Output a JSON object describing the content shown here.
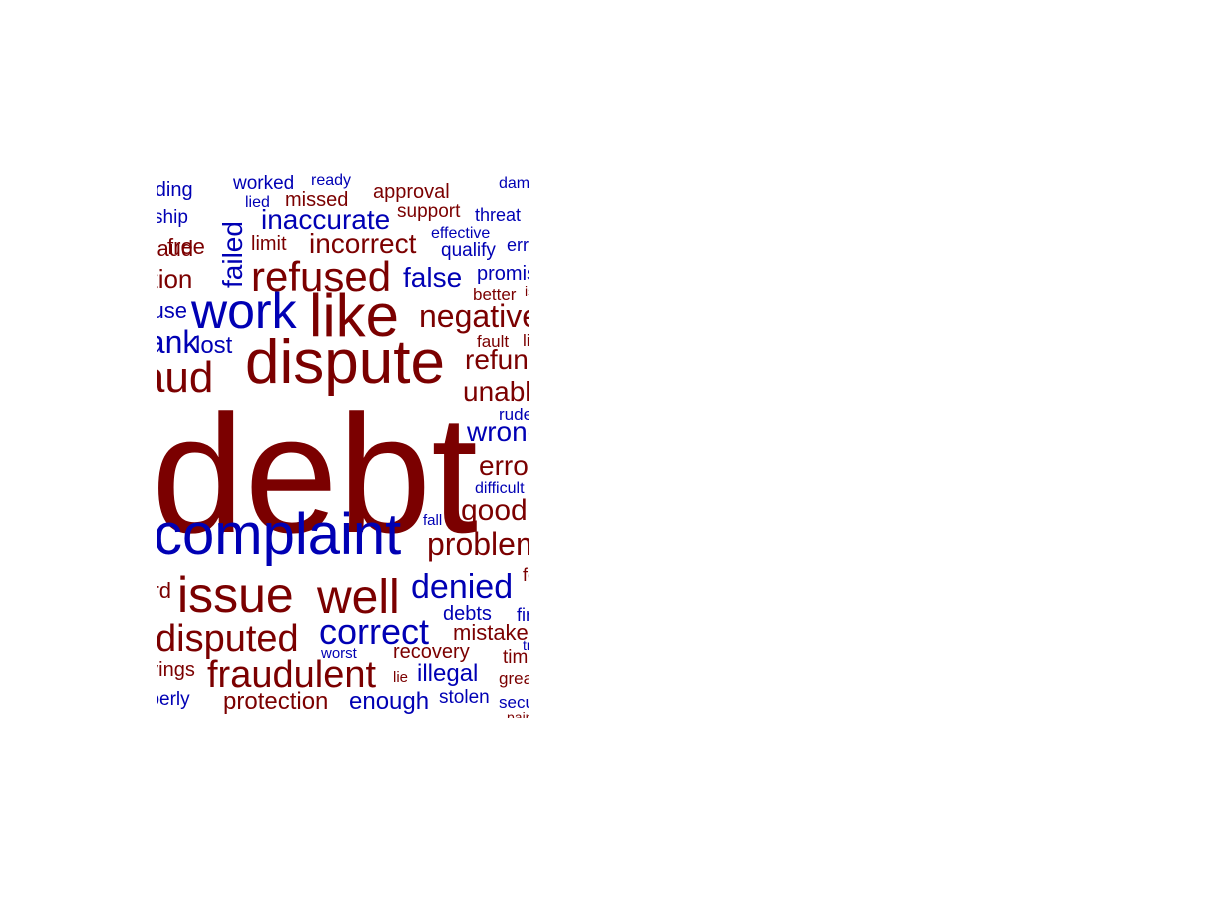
{
  "word_cloud": {
    "colors": {
      "negative": "#7b0000",
      "positive": "#0000b4"
    },
    "words": [
      {
        "text": "debt",
        "sentiment": "negative"
      },
      {
        "text": "complaint",
        "sentiment": "positive"
      },
      {
        "text": "dispute",
        "sentiment": "negative"
      },
      {
        "text": "like",
        "sentiment": "negative"
      },
      {
        "text": "work",
        "sentiment": "positive"
      },
      {
        "text": "refused",
        "sentiment": "negative"
      },
      {
        "text": "issue",
        "sentiment": "negative"
      },
      {
        "text": "well",
        "sentiment": "negative"
      },
      {
        "text": "fraudulent",
        "sentiment": "negative"
      },
      {
        "text": "disputed",
        "sentiment": "negative"
      },
      {
        "text": "correct",
        "sentiment": "positive"
      },
      {
        "text": "denied",
        "sentiment": "positive"
      },
      {
        "text": "problem",
        "sentiment": "negative"
      },
      {
        "text": "good",
        "sentiment": "negative"
      },
      {
        "text": "negative",
        "sentiment": "negative"
      },
      {
        "text": "fraud",
        "sentiment": "negative"
      },
      {
        "text": "incorrect",
        "sentiment": "negative"
      },
      {
        "text": "inaccurate",
        "sentiment": "positive"
      },
      {
        "text": "false",
        "sentiment": "positive"
      },
      {
        "text": "failed",
        "sentiment": "positive"
      },
      {
        "text": "refund",
        "sentiment": "negative"
      },
      {
        "text": "unable",
        "sentiment": "negative"
      },
      {
        "text": "wrong",
        "sentiment": "positive"
      },
      {
        "text": "error",
        "sentiment": "negative"
      },
      {
        "text": "protection",
        "sentiment": "negative"
      },
      {
        "text": "enough",
        "sentiment": "positive"
      },
      {
        "text": "illegal",
        "sentiment": "positive"
      },
      {
        "text": "mistake",
        "sentiment": "negative"
      },
      {
        "text": "recovery",
        "sentiment": "negative"
      },
      {
        "text": "debts",
        "sentiment": "positive"
      },
      {
        "text": "lost",
        "sentiment": "positive"
      },
      {
        "text": "bank",
        "sentiment": "positive"
      },
      {
        "text": "free",
        "sentiment": "negative"
      },
      {
        "text": "limit",
        "sentiment": "negative"
      },
      {
        "text": "missed",
        "sentiment": "negative"
      },
      {
        "text": "approval",
        "sentiment": "negative"
      },
      {
        "text": "support",
        "sentiment": "negative"
      },
      {
        "text": "worked",
        "sentiment": "positive"
      },
      {
        "text": "ready",
        "sentiment": "positive"
      },
      {
        "text": "lied",
        "sentiment": "positive"
      },
      {
        "text": "effective",
        "sentiment": "positive"
      },
      {
        "text": "qualify",
        "sentiment": "positive"
      },
      {
        "text": "promise",
        "sentiment": "positive"
      },
      {
        "text": "better",
        "sentiment": "negative"
      },
      {
        "text": "fault",
        "sentiment": "negative"
      },
      {
        "text": "rude",
        "sentiment": "positive"
      },
      {
        "text": "difficult",
        "sentiment": "positive"
      },
      {
        "text": "fall",
        "sentiment": "positive"
      },
      {
        "text": "worst",
        "sentiment": "positive"
      },
      {
        "text": "lie",
        "sentiment": "negative"
      },
      {
        "text": "stolen",
        "sentiment": "positive"
      },
      {
        "text": "great",
        "sentiment": "negative"
      },
      {
        "text": "time",
        "sentiment": "negative"
      },
      {
        "text": "secure",
        "sentiment": "positive"
      },
      {
        "text": "threat",
        "sentiment": "positive"
      },
      {
        "text": "damage",
        "sentiment": "positive"
      },
      {
        "text": "error",
        "sentiment": "positive"
      },
      {
        "text": "standing",
        "sentiment": "positive"
      },
      {
        "text": "hardship",
        "sentiment": "positive"
      },
      {
        "text": "violation",
        "sentiment": "negative"
      },
      {
        "text": "abuse",
        "sentiment": "positive"
      },
      {
        "text": "fraud",
        "sentiment": "negative"
      },
      {
        "text": "savings",
        "sentiment": "negative"
      },
      {
        "text": "properly",
        "sentiment": "positive"
      },
      {
        "text": "hard",
        "sentiment": "negative"
      },
      {
        "text": "fine",
        "sentiment": "positive"
      },
      {
        "text": "fees",
        "sentiment": "negative"
      },
      {
        "text": "lied",
        "sentiment": "negative"
      },
      {
        "text": "pain",
        "sentiment": "negative"
      },
      {
        "text": "trust",
        "sentiment": "positive"
      },
      {
        "text": "issues",
        "sentiment": "negative"
      }
    ]
  }
}
